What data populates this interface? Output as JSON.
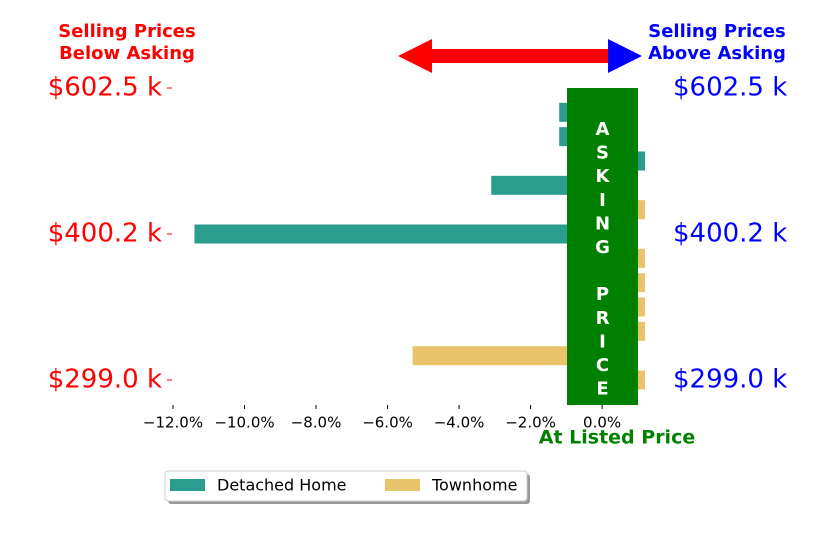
{
  "chart_data": {
    "type": "barh",
    "categories": [
      "$602.5 k",
      null,
      null,
      null,
      null,
      null,
      "$400.2 k",
      null,
      null,
      null,
      null,
      null,
      "$299.0 k"
    ],
    "series": [
      {
        "name": "Detached Home",
        "color": "#2a9d8f",
        "values": [
          null,
          -1.2,
          -1.2,
          1.2,
          -3.1,
          null,
          -11.4,
          null,
          null,
          null,
          null,
          null,
          null
        ]
      },
      {
        "name": "Townhome",
        "color": "#e9c46a",
        "values": [
          null,
          null,
          null,
          null,
          null,
          1.2,
          null,
          1.2,
          1.2,
          1.2,
          1.2,
          -5.3,
          1.2
        ]
      }
    ],
    "xlim": [
      -12.0,
      1.2
    ],
    "xticks": [
      {
        "value": -12,
        "label": "−12.0%"
      },
      {
        "value": -10,
        "label": "−10.0%"
      },
      {
        "value": -8,
        "label": "−8.0%"
      },
      {
        "value": -6,
        "label": "−6.0%"
      },
      {
        "value": -4,
        "label": "−4.0%"
      },
      {
        "value": -2,
        "label": "−2.0%"
      },
      {
        "value": 0,
        "label": "0.0%"
      }
    ],
    "annotations": {
      "below_asking": [
        "Selling Prices",
        "Below Asking"
      ],
      "above_asking": [
        "Selling Prices",
        "Above Asking"
      ],
      "asking_price": "ASKING PRICE",
      "at_listed_price": "At Listed Price"
    },
    "legend": "lower center"
  }
}
